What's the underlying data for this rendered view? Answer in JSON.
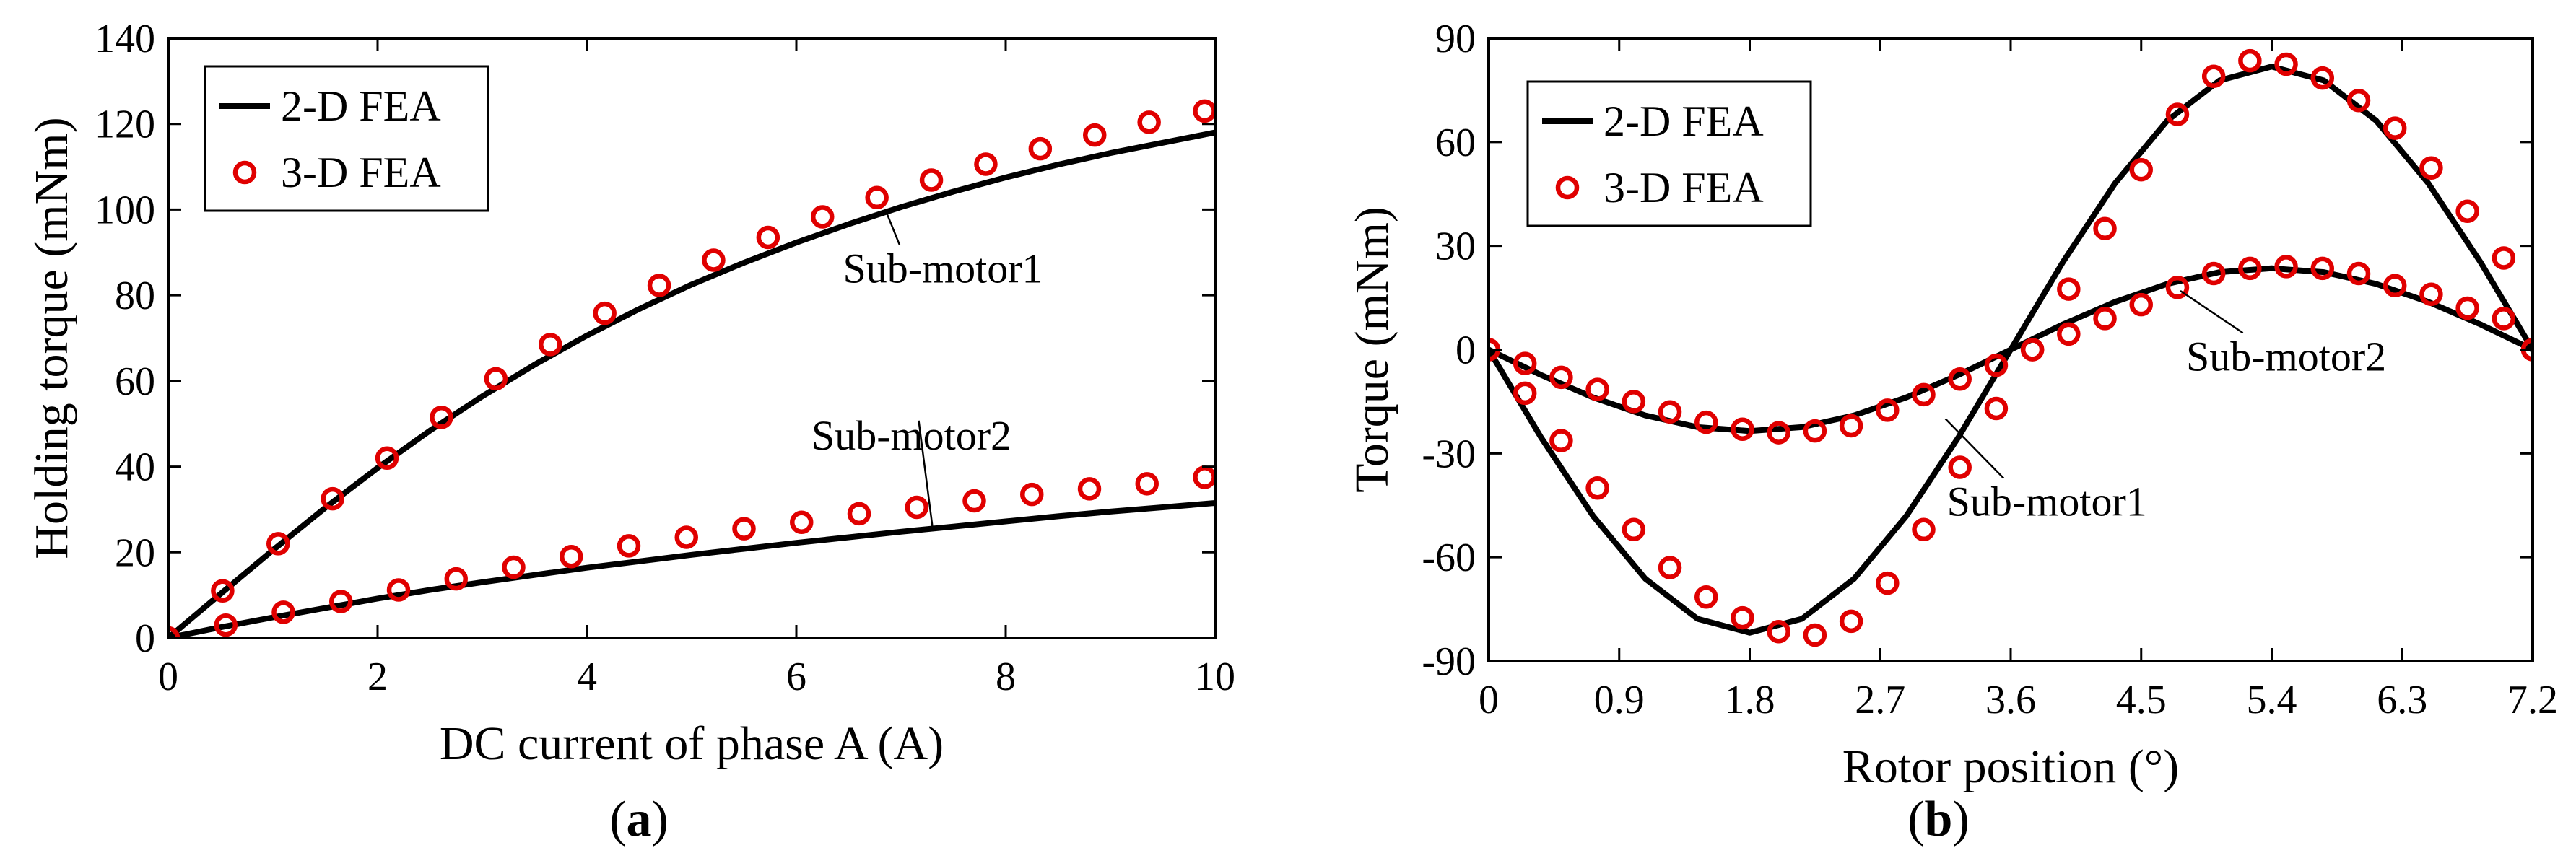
{
  "chart_data": [
    {
      "type": "line",
      "panel_label": "a",
      "xlabel": "DC current of phase A (A)",
      "ylabel": "Holding torque (mNm)",
      "xlim": [
        0,
        10
      ],
      "ylim": [
        0,
        140
      ],
      "xticks": [
        0,
        2,
        4,
        6,
        8,
        10
      ],
      "yticks": [
        0,
        20,
        40,
        60,
        80,
        100,
        120,
        140
      ],
      "xtick_labels": [
        "0",
        "2",
        "4",
        "6",
        "8",
        "10"
      ],
      "ytick_labels": [
        "0",
        "20",
        "40",
        "60",
        "80",
        "100",
        "120",
        "140"
      ],
      "grid": false,
      "legend": {
        "position": "top-left",
        "entries": [
          {
            "label": "2-D FEA",
            "style": "line"
          },
          {
            "label": "3-D FEA",
            "style": "marker"
          }
        ]
      },
      "series": [
        {
          "name": "Sub-motor1 2-D FEA",
          "style": "line",
          "x": [
            0,
            0.5,
            1,
            1.5,
            2,
            2.5,
            3,
            3.5,
            4,
            4.5,
            5,
            5.5,
            6,
            6.5,
            7,
            7.5,
            8,
            8.5,
            9,
            9.5,
            10
          ],
          "y": [
            0,
            10.3,
            20.5,
            30.4,
            39.7,
            48.4,
            56.4,
            63.8,
            70.6,
            76.8,
            82.5,
            87.6,
            92.3,
            96.6,
            100.6,
            104.2,
            107.5,
            110.5,
            113.2,
            115.6,
            118
          ]
        },
        {
          "name": "Sub-motor1 3-D FEA",
          "style": "marker",
          "x": [
            0,
            0.52,
            1.05,
            1.57,
            2.09,
            2.61,
            3.13,
            3.65,
            4.17,
            4.69,
            5.21,
            5.73,
            6.25,
            6.77,
            7.29,
            7.81,
            8.33,
            8.85,
            9.37,
            9.9
          ],
          "y": [
            0,
            11,
            22,
            32.5,
            42,
            51.5,
            60.5,
            68.5,
            75.8,
            82.3,
            88.2,
            93.5,
            98.3,
            102.8,
            106.9,
            110.6,
            114.2,
            117.4,
            120.4,
            123
          ]
        },
        {
          "name": "Sub-motor2 2-D FEA",
          "style": "line",
          "x": [
            0,
            0.5,
            1,
            1.5,
            2,
            2.5,
            3,
            3.5,
            4,
            4.5,
            5,
            5.5,
            6,
            6.5,
            7,
            7.5,
            8,
            8.5,
            9,
            9.5,
            10
          ],
          "y": [
            0,
            2.5,
            4.8,
            7,
            9.2,
            11.2,
            13,
            14.7,
            16.4,
            17.9,
            19.4,
            20.8,
            22.2,
            23.5,
            24.8,
            26,
            27.2,
            28.4,
            29.5,
            30.5,
            31.5
          ]
        },
        {
          "name": "Sub-motor2 3-D FEA",
          "style": "marker",
          "x": [
            0,
            0.55,
            1.1,
            1.65,
            2.2,
            2.75,
            3.3,
            3.85,
            4.4,
            4.95,
            5.5,
            6.05,
            6.6,
            7.15,
            7.7,
            8.25,
            8.8,
            9.35,
            9.9
          ],
          "y": [
            0,
            3,
            6,
            8.5,
            11.2,
            13.8,
            16.5,
            19,
            21.5,
            23.5,
            25.5,
            27,
            29,
            30.5,
            32,
            33.5,
            34.8,
            36,
            37.5
          ]
        }
      ],
      "annotations": [
        {
          "text": "Sub-motor1",
          "x": 7.4,
          "y": 83,
          "points_to": [
            6.85,
            100
          ]
        },
        {
          "text": "Sub-motor2",
          "x": 7.1,
          "y": 44,
          "points_to": [
            7.3,
            26
          ]
        }
      ]
    },
    {
      "type": "line",
      "panel_label": "b",
      "xlabel": "Rotor position (°)",
      "ylabel": "Torque (mNm)",
      "xlim": [
        0,
        7.2
      ],
      "ylim": [
        -90,
        90
      ],
      "xticks": [
        0,
        0.9,
        1.8,
        2.7,
        3.6,
        4.5,
        5.4,
        6.3,
        7.2
      ],
      "yticks": [
        -90,
        -60,
        -30,
        0,
        30,
        60,
        90
      ],
      "xtick_labels": [
        "0",
        "0.9",
        "1.8",
        "2.7",
        "3.6",
        "4.5",
        "5.4",
        "6.3",
        "7.2"
      ],
      "ytick_labels": [
        "-90",
        "-60",
        "-30",
        "0",
        "30",
        "60",
        "90"
      ],
      "grid": false,
      "legend": {
        "position": "top-left",
        "entries": [
          {
            "label": "2-D FEA",
            "style": "line"
          },
          {
            "label": "3-D FEA",
            "style": "marker"
          }
        ]
      },
      "series": [
        {
          "name": "Sub-motor1 2-D FEA",
          "style": "line",
          "x": [
            0,
            0.36,
            0.72,
            1.08,
            1.44,
            1.8,
            2.16,
            2.52,
            2.88,
            3.24,
            3.6,
            3.96,
            4.32,
            4.68,
            5.04,
            5.4,
            5.76,
            6.12,
            6.48,
            6.84,
            7.2
          ],
          "y": [
            0,
            -25.3,
            -48.1,
            -66.2,
            -77.8,
            -81.8,
            -77.8,
            -66.2,
            -48.1,
            -25.3,
            0,
            25.3,
            48.1,
            66.2,
            77.8,
            81.8,
            77.8,
            66.2,
            48.1,
            25.3,
            0
          ]
        },
        {
          "name": "Sub-motor1 3-D FEA",
          "style": "marker",
          "x": [
            0,
            0.25,
            0.5,
            0.75,
            1,
            1.25,
            1.5,
            1.75,
            2,
            2.25,
            2.5,
            2.75,
            3,
            3.25,
            3.5,
            3.75,
            4,
            4.25,
            4.5,
            4.75,
            5,
            5.25,
            5.5,
            5.75,
            6,
            6.25,
            6.5,
            6.75,
            7,
            7.2
          ],
          "y": [
            0,
            -12.6,
            -26.3,
            -40,
            -52,
            -63,
            -71.5,
            -77.5,
            -81.5,
            -82.5,
            -78.5,
            -67.5,
            -52,
            -34,
            -17,
            0,
            17.5,
            35,
            52,
            68,
            79,
            83.5,
            82.5,
            78.5,
            72,
            64,
            52.5,
            40,
            26.5,
            0
          ]
        },
        {
          "name": "Sub-motor2 2-D FEA",
          "style": "line",
          "x": [
            0,
            0.36,
            0.72,
            1.08,
            1.44,
            1.8,
            2.16,
            2.52,
            2.88,
            3.24,
            3.6,
            3.96,
            4.32,
            4.68,
            5.04,
            5.4,
            5.76,
            6.12,
            6.48,
            6.84,
            7.2
          ],
          "y": [
            0,
            -7.3,
            -13.8,
            -19,
            -22.4,
            -23.5,
            -22.4,
            -19,
            -13.8,
            -7.3,
            0,
            7.3,
            13.8,
            19,
            22.4,
            23.5,
            22.4,
            19,
            13.8,
            7.3,
            0
          ]
        },
        {
          "name": "Sub-motor2 3-D FEA",
          "style": "marker",
          "x": [
            0,
            0.25,
            0.5,
            0.75,
            1,
            1.25,
            1.5,
            1.75,
            2,
            2.25,
            2.5,
            2.75,
            3,
            3.25,
            3.5,
            3.75,
            4,
            4.25,
            4.5,
            4.75,
            5,
            5.25,
            5.5,
            5.75,
            6,
            6.25,
            6.5,
            6.75,
            7,
            7.2
          ],
          "y": [
            0,
            -4,
            -8,
            -11.5,
            -15,
            -18,
            -21,
            -23,
            -24,
            -23.5,
            -22,
            -17.5,
            -13,
            -8.5,
            -4.5,
            0,
            4.5,
            9,
            13,
            18,
            22,
            23.5,
            24,
            23.5,
            22,
            18.5,
            16,
            12,
            9,
            0
          ]
        }
      ],
      "annotations": [
        {
          "text": "Sub-motor2",
          "x": 5.5,
          "y": -6,
          "points_to": [
            4.77,
            17
          ]
        },
        {
          "text": "Sub-motor1",
          "x": 3.85,
          "y": -48,
          "points_to": [
            3.15,
            -20
          ]
        }
      ]
    }
  ]
}
